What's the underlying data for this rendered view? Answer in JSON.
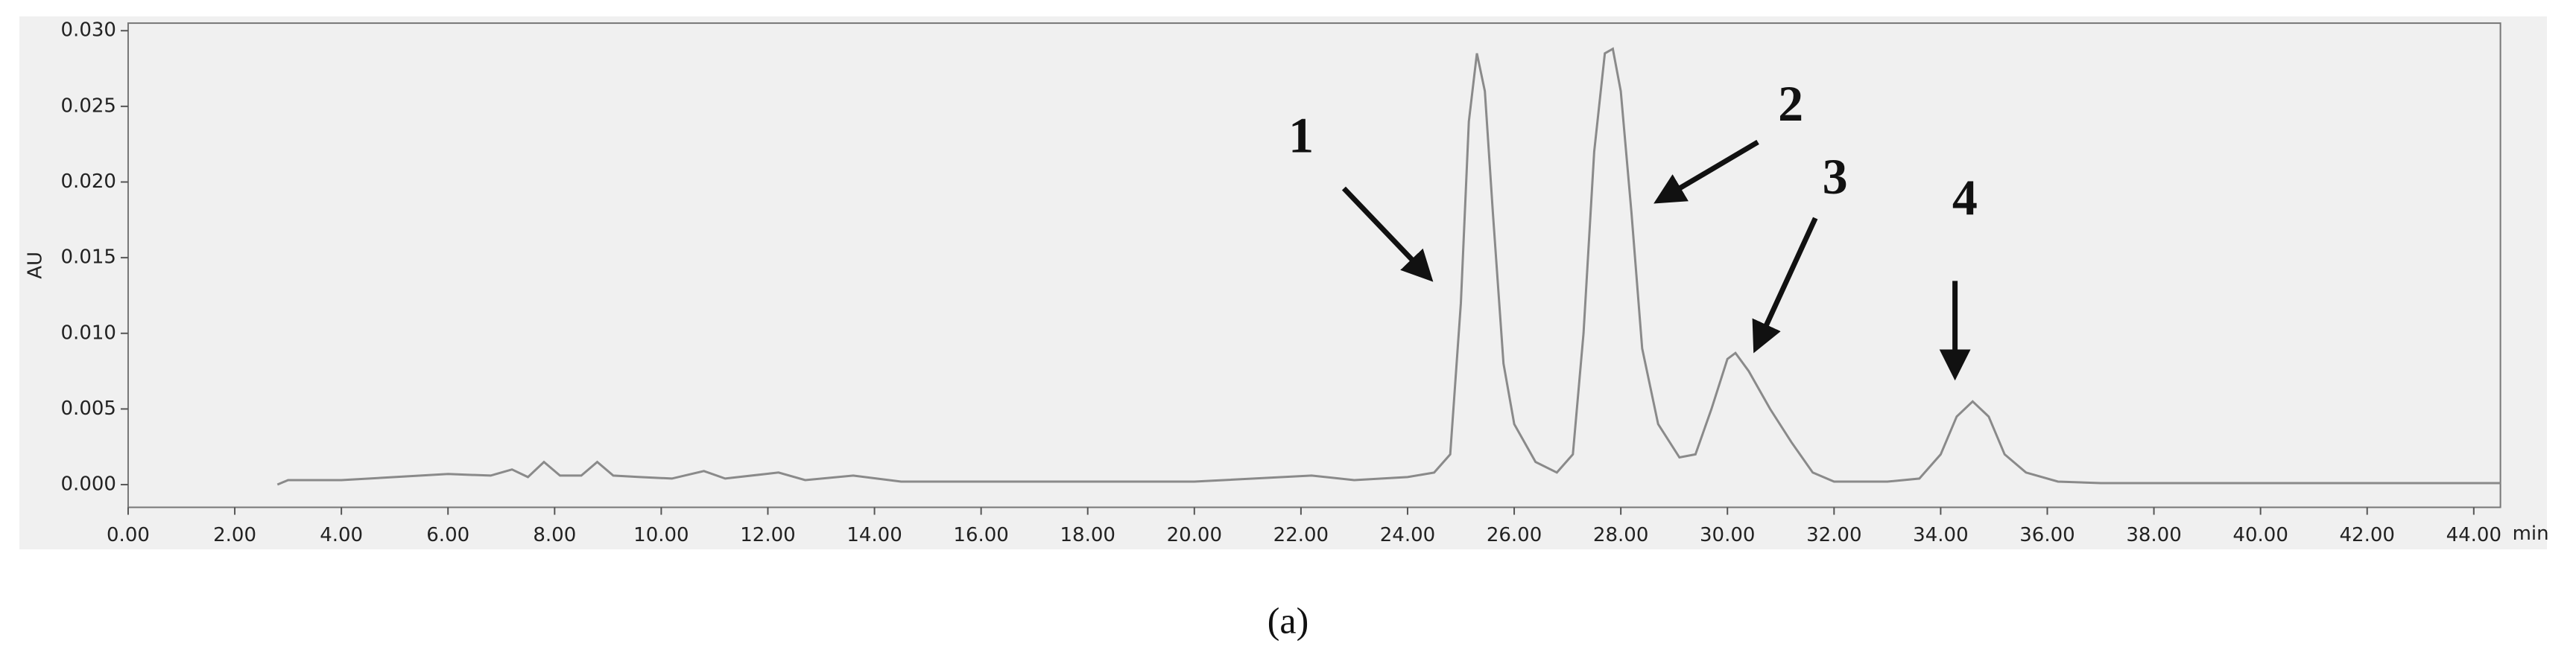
{
  "chart_data": {
    "type": "line",
    "y_label": "AU",
    "x_label": "min",
    "caption": "(a)",
    "annotations": [
      "1",
      "2",
      "3",
      "4"
    ],
    "color": "#8a8a8a",
    "x": [
      2.8,
      3.0,
      4.0,
      5.0,
      6.0,
      6.8,
      7.2,
      7.5,
      7.8,
      8.1,
      8.5,
      8.8,
      9.1,
      9.6,
      10.2,
      10.8,
      11.2,
      12.2,
      12.7,
      13.6,
      14.5,
      16,
      18,
      20,
      22.2,
      23,
      24,
      24.5,
      24.8,
      25.0,
      25.15,
      25.3,
      25.45,
      25.6,
      25.8,
      26.0,
      26.4,
      26.8,
      27.1,
      27.3,
      27.5,
      27.7,
      27.85,
      28.0,
      28.2,
      28.4,
      28.7,
      29.1,
      29.4,
      29.7,
      30.0,
      30.15,
      30.4,
      30.8,
      31.2,
      31.6,
      32,
      33,
      33.6,
      34.0,
      34.3,
      34.6,
      34.9,
      35.2,
      35.6,
      36.2,
      37,
      40,
      44.5
    ],
    "values": [
      0,
      0.0003,
      0.0003,
      0.0005,
      0.0007,
      0.0006,
      0.001,
      0.0005,
      0.0015,
      0.0006,
      0.0006,
      0.0015,
      0.0006,
      0.0005,
      0.0004,
      0.0009,
      0.0004,
      0.0008,
      0.0003,
      0.0006,
      0.0002,
      0.0002,
      0.0002,
      0.0002,
      0.0006,
      0.0003,
      0.0005,
      0.0008,
      0.002,
      0.012,
      0.024,
      0.0285,
      0.026,
      0.018,
      0.008,
      0.004,
      0.0015,
      0.0008,
      0.002,
      0.01,
      0.022,
      0.0285,
      0.0288,
      0.026,
      0.018,
      0.009,
      0.004,
      0.0018,
      0.002,
      0.005,
      0.0083,
      0.0087,
      0.0075,
      0.005,
      0.0028,
      0.0008,
      0.0002,
      0.0002,
      0.0004,
      0.002,
      0.0045,
      0.0055,
      0.0045,
      0.002,
      0.0008,
      0.0002,
      0.0001,
      0.0001,
      0.0001
    ],
    "xlim": [
      0,
      44.5
    ],
    "ylim": [
      -0.0015,
      0.0305
    ],
    "xticks": [
      {
        "value": 0,
        "label": "0.00"
      },
      {
        "value": 2,
        "label": "2.00"
      },
      {
        "value": 4,
        "label": "4.00"
      },
      {
        "value": 6,
        "label": "6.00"
      },
      {
        "value": 8,
        "label": "8.00"
      },
      {
        "value": 10,
        "label": "10.00"
      },
      {
        "value": 12,
        "label": "12.00"
      },
      {
        "value": 14,
        "label": "14.00"
      },
      {
        "value": 16,
        "label": "16.00"
      },
      {
        "value": 18,
        "label": "18.00"
      },
      {
        "value": 20,
        "label": "20.00"
      },
      {
        "value": 22,
        "label": "22.00"
      },
      {
        "value": 24,
        "label": "24.00"
      },
      {
        "value": 26,
        "label": "26.00"
      },
      {
        "value": 28,
        "label": "28.00"
      },
      {
        "value": 30,
        "label": "30.00"
      },
      {
        "value": 32,
        "label": "32.00"
      },
      {
        "value": 34,
        "label": "34.00"
      },
      {
        "value": 36,
        "label": "36.00"
      },
      {
        "value": 38,
        "label": "38.00"
      },
      {
        "value": 40,
        "label": "40.00"
      },
      {
        "value": 42,
        "label": "42.00"
      },
      {
        "value": 44,
        "label": "44.00"
      }
    ],
    "yticks": [
      {
        "value": 0,
        "label": "0.000"
      },
      {
        "value": 0.005,
        "label": "0.005"
      },
      {
        "value": 0.01,
        "label": "0.010"
      },
      {
        "value": 0.015,
        "label": "0.015"
      },
      {
        "value": 0.02,
        "label": "0.020"
      },
      {
        "value": 0.025,
        "label": "0.025"
      },
      {
        "value": 0.03,
        "label": "0.030"
      }
    ]
  }
}
